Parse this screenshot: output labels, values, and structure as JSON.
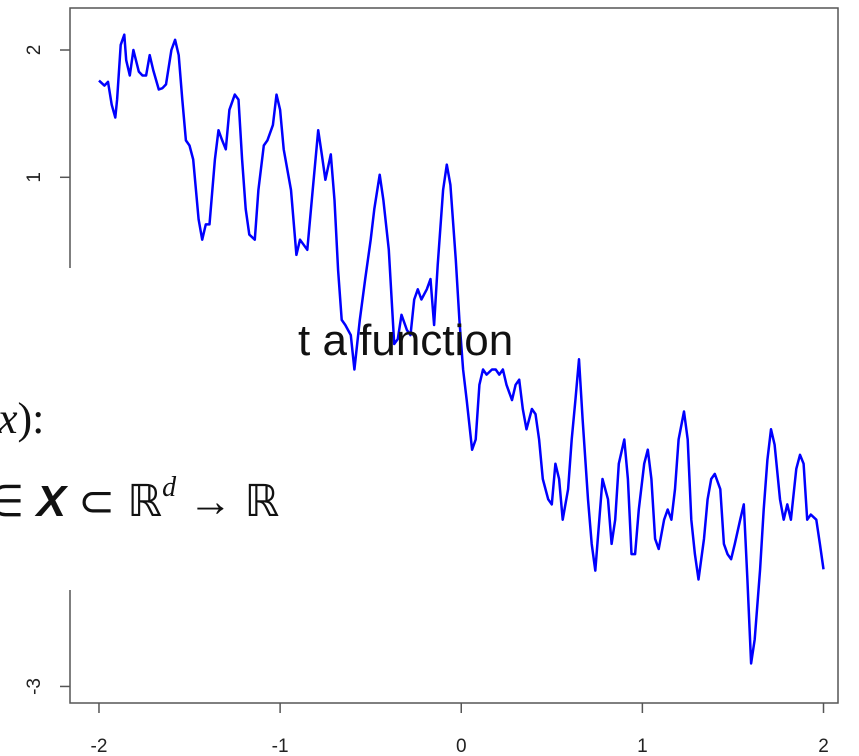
{
  "chart_data": {
    "type": "line",
    "x": [
      -2.0,
      -1.97,
      -1.95,
      -1.93,
      -1.91,
      -1.9,
      -1.88,
      -1.86,
      -1.85,
      -1.83,
      -1.81,
      -1.78,
      -1.76,
      -1.74,
      -1.72,
      -1.7,
      -1.67,
      -1.65,
      -1.63,
      -1.6,
      -1.58,
      -1.56,
      -1.54,
      -1.52,
      -1.5,
      -1.48,
      -1.45,
      -1.43,
      -1.41,
      -1.39,
      -1.36,
      -1.34,
      -1.32,
      -1.3,
      -1.28,
      -1.25,
      -1.23,
      -1.21,
      -1.19,
      -1.17,
      -1.14,
      -1.12,
      -1.09,
      -1.07,
      -1.04,
      -1.02,
      -1.0,
      -0.98,
      -0.94,
      -0.91,
      -0.89,
      -0.87,
      -0.85,
      -0.82,
      -0.79,
      -0.77,
      -0.75,
      -0.72,
      -0.7,
      -0.68,
      -0.66,
      -0.64,
      -0.61,
      -0.59,
      -0.56,
      -0.53,
      -0.5,
      -0.48,
      -0.45,
      -0.43,
      -0.4,
      -0.37,
      -0.35,
      -0.33,
      -0.3,
      -0.28,
      -0.26,
      -0.24,
      -0.22,
      -0.19,
      -0.17,
      -0.15,
      -0.13,
      -0.1,
      -0.08,
      -0.06,
      -0.03,
      -0.01,
      0.01,
      0.03,
      0.06,
      0.08,
      0.1,
      0.12,
      0.14,
      0.17,
      0.19,
      0.21,
      0.23,
      0.25,
      0.28,
      0.3,
      0.32,
      0.34,
      0.36,
      0.39,
      0.41,
      0.43,
      0.45,
      0.48,
      0.5,
      0.52,
      0.54,
      0.56,
      0.59,
      0.61,
      0.63,
      0.65,
      0.67,
      0.7,
      0.72,
      0.74,
      0.76,
      0.78,
      0.81,
      0.83,
      0.85,
      0.87,
      0.9,
      0.92,
      0.94,
      0.96,
      0.98,
      1.01,
      1.03,
      1.05,
      1.07,
      1.09,
      1.12,
      1.14,
      1.16,
      1.18,
      1.2,
      1.23,
      1.25,
      1.27,
      1.29,
      1.31,
      1.34,
      1.36,
      1.38,
      1.4,
      1.43,
      1.45,
      1.47,
      1.49,
      1.51,
      1.54,
      1.56,
      1.58,
      1.6,
      1.62,
      1.65,
      1.67,
      1.69,
      1.71,
      1.73,
      1.76,
      1.78,
      1.8,
      1.82,
      1.85,
      1.87,
      1.89,
      1.91,
      1.93,
      1.96,
      1.98,
      2.0
    ],
    "series": [
      {
        "color": "#0000ff",
        "values": [
          1.76,
          1.72,
          1.75,
          1.57,
          1.47,
          1.61,
          2.04,
          2.12,
          1.92,
          1.8,
          2.0,
          1.83,
          1.8,
          1.8,
          1.96,
          1.84,
          1.69,
          1.7,
          1.73,
          2.0,
          2.08,
          1.96,
          1.61,
          1.29,
          1.25,
          1.14,
          0.67,
          0.51,
          0.63,
          0.63,
          1.14,
          1.37,
          1.29,
          1.22,
          1.53,
          1.65,
          1.61,
          1.14,
          0.75,
          0.55,
          0.51,
          0.9,
          1.25,
          1.29,
          1.41,
          1.65,
          1.53,
          1.22,
          0.9,
          0.39,
          0.51,
          0.47,
          0.43,
          0.9,
          1.37,
          1.18,
          0.98,
          1.18,
          0.82,
          0.27,
          -0.12,
          -0.16,
          -0.24,
          -0.51,
          -0.12,
          0.2,
          0.51,
          0.75,
          1.02,
          0.82,
          0.43,
          -0.31,
          -0.27,
          -0.08,
          -0.2,
          -0.24,
          0.04,
          0.12,
          0.04,
          0.12,
          0.2,
          -0.16,
          0.31,
          0.9,
          1.1,
          0.94,
          0.35,
          -0.12,
          -0.51,
          -0.75,
          -1.14,
          -1.06,
          -0.63,
          -0.51,
          -0.55,
          -0.51,
          -0.51,
          -0.55,
          -0.51,
          -0.63,
          -0.75,
          -0.63,
          -0.59,
          -0.82,
          -0.98,
          -0.82,
          -0.86,
          -1.06,
          -1.37,
          -1.53,
          -1.57,
          -1.25,
          -1.37,
          -1.69,
          -1.45,
          -1.06,
          -0.75,
          -0.43,
          -0.9,
          -1.53,
          -1.88,
          -2.09,
          -1.73,
          -1.37,
          -1.53,
          -1.88,
          -1.69,
          -1.25,
          -1.06,
          -1.37,
          -1.96,
          -1.96,
          -1.61,
          -1.25,
          -1.14,
          -1.37,
          -1.84,
          -1.92,
          -1.69,
          -1.61,
          -1.69,
          -1.45,
          -1.06,
          -0.84,
          -1.06,
          -1.69,
          -1.96,
          -2.16,
          -1.84,
          -1.53,
          -1.37,
          -1.33,
          -1.45,
          -1.88,
          -1.96,
          -2.0,
          -1.88,
          -1.69,
          -1.57,
          -2.16,
          -2.82,
          -2.63,
          -2.08,
          -1.61,
          -1.22,
          -0.98,
          -1.1,
          -1.53,
          -1.69,
          -1.57,
          -1.69,
          -1.29,
          -1.18,
          -1.25,
          -1.69,
          -1.65,
          -1.69,
          -1.88,
          -2.08
        ]
      }
    ],
    "xlim": [
      -2.16,
      2.08
    ],
    "ylim": [
      -3.13,
      2.33
    ],
    "xticks": [
      -2,
      -1,
      0,
      1,
      2
    ],
    "yticks": [
      2,
      1,
      -3
    ],
    "annotations": [
      [
        "t a function"
      ],
      [
        "x",
        "):"
      ],
      [
        "∈ ",
        "X",
        " ⊂ ℝ",
        "d",
        "  →  ℝ"
      ]
    ]
  }
}
